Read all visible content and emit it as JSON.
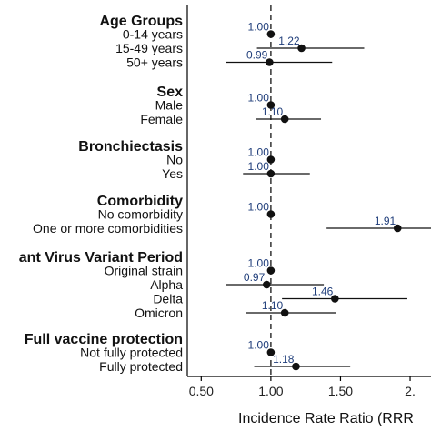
{
  "colors": {
    "point": "#111111",
    "value_label": "#1f3d7a",
    "axis": "#000000",
    "reference_line": "#333333"
  },
  "chart_data": {
    "type": "scatter",
    "subtype": "forest-plot",
    "xlabel": "Incidence Rate Ratio (RRR",
    "xlim": [
      0.4,
      2.15
    ],
    "xticks": [
      0.5,
      1.0,
      1.5,
      2.0
    ],
    "xtick_labels": [
      "0.50",
      "1.00",
      "1.50",
      "2."
    ],
    "reference_value": 1.0,
    "grid": false,
    "groups": [
      {
        "title": "Age Groups",
        "rows": [
          {
            "label": "0-14 years",
            "value": 1.0,
            "value_text": "1.00",
            "ci": [
              1.0,
              1.0
            ]
          },
          {
            "label": "15-49 years",
            "value": 1.22,
            "value_text": "1.22",
            "ci": [
              0.9,
              1.67
            ]
          },
          {
            "label": "50+ years",
            "value": 0.99,
            "value_text": "0.99",
            "ci": [
              0.68,
              1.44
            ]
          }
        ]
      },
      {
        "title": "Sex",
        "rows": [
          {
            "label": "Male",
            "value": 1.0,
            "value_text": "1.00",
            "ci": [
              1.0,
              1.0
            ]
          },
          {
            "label": "Female",
            "value": 1.1,
            "value_text": "1.10",
            "ci": [
              0.89,
              1.36
            ]
          }
        ]
      },
      {
        "title": "Bronchiectasis",
        "rows": [
          {
            "label": "No",
            "value": 1.0,
            "value_text": "1.00",
            "ci": [
              1.0,
              1.0
            ]
          },
          {
            "label": "Yes",
            "value": 1.0,
            "value_text": "1.00",
            "ci": [
              0.8,
              1.28
            ]
          }
        ]
      },
      {
        "title": "Comorbidity",
        "rows": [
          {
            "label": "No comorbidity",
            "value": 1.0,
            "value_text": "1.00",
            "ci": [
              1.0,
              1.0
            ]
          },
          {
            "label": "One or more comorbidities",
            "value": 1.91,
            "value_text": "1.91",
            "ci": [
              1.4,
              2.6
            ]
          }
        ]
      },
      {
        "title": "ant Virus Variant Period",
        "rows": [
          {
            "label": "Original strain",
            "value": 1.0,
            "value_text": "1.00",
            "ci": [
              1.0,
              1.0
            ]
          },
          {
            "label": "Alpha",
            "value": 0.97,
            "value_text": "0.97",
            "ci": [
              0.68,
              1.38
            ]
          },
          {
            "label": "Delta",
            "value": 1.46,
            "value_text": "1.46",
            "ci": [
              1.08,
              1.98
            ]
          },
          {
            "label": "Omicron",
            "value": 1.1,
            "value_text": "1.10",
            "ci": [
              0.82,
              1.47
            ]
          }
        ]
      },
      {
        "title": "Full vaccine protection",
        "rows": [
          {
            "label": "Not fully protected",
            "value": 1.0,
            "value_text": "1.00",
            "ci": [
              1.0,
              1.0
            ]
          },
          {
            "label": "Fully protected",
            "value": 1.18,
            "value_text": "1.18",
            "ci": [
              0.88,
              1.57
            ]
          }
        ]
      }
    ]
  }
}
